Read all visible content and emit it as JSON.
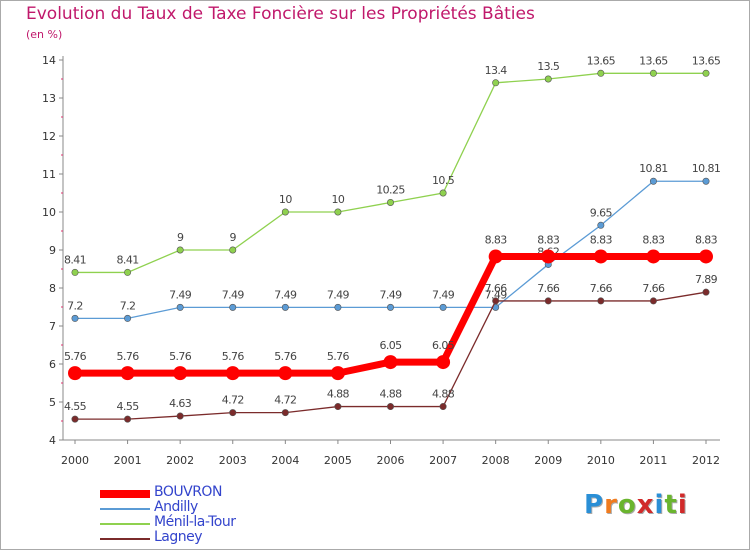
{
  "title": "Evolution du Taux de Taxe Foncière sur les Propriétés Bâties",
  "unit": "(en %)",
  "logo": {
    "text": "Proxiti",
    "colors": [
      "#2a8fd6",
      "#f07b1e",
      "#6ab52e",
      "#d12a2a",
      "#2a8fd6",
      "#6ab52e",
      "#d12a2a"
    ]
  },
  "chart_data": {
    "type": "line",
    "title": "Evolution du Taux de Taxe Foncière sur les Propriétés Bâties",
    "ylabel": "(en %)",
    "xlabel": "",
    "x": [
      "2000",
      "2001",
      "2002",
      "2003",
      "2004",
      "2005",
      "2006",
      "2007",
      "2008",
      "2009",
      "2010",
      "2011",
      "2012"
    ],
    "ylim": [
      4,
      14
    ],
    "yticks": [
      "4",
      "5",
      "6",
      "7",
      "8",
      "9",
      "10",
      "11",
      "12",
      "13",
      "14"
    ],
    "grid": false,
    "legend_position": "bottom-left",
    "series": [
      {
        "name": "BOUVRON",
        "color": "#ff0000",
        "emphasis": true,
        "values": [
          5.76,
          5.76,
          5.76,
          5.76,
          5.76,
          5.76,
          6.05,
          6.05,
          8.83,
          8.83,
          8.83,
          8.83,
          8.83
        ],
        "labels": [
          "5.76",
          "5.76",
          "5.76",
          "5.76",
          "5.76",
          "5.76",
          "6.05",
          "6.05",
          "8.83",
          "8.83",
          "8.83",
          "8.83",
          "8.83"
        ]
      },
      {
        "name": "Andilly",
        "color": "#5b9bd5",
        "values": [
          7.2,
          7.2,
          7.49,
          7.49,
          7.49,
          7.49,
          7.49,
          7.49,
          7.49,
          8.62,
          9.65,
          10.81,
          10.81
        ],
        "labels": [
          "7.2",
          "7.2",
          "7.49",
          "7.49",
          "7.49",
          "7.49",
          "7.49",
          "7.49",
          "7.49",
          "8.62",
          "9.65",
          "10.81",
          "10.81"
        ]
      },
      {
        "name": "Ménil-la-Tour",
        "color": "#8fd14f",
        "values": [
          8.41,
          8.41,
          9,
          9,
          10,
          10,
          10.25,
          10.5,
          13.4,
          13.5,
          13.65,
          13.65,
          13.65
        ],
        "labels": [
          "8.41",
          "8.41",
          "9",
          "9",
          "10",
          "10",
          "10.25",
          "10.5",
          "13.4",
          "13.5",
          "13.65",
          "13.65",
          "13.65"
        ]
      },
      {
        "name": "Lagney",
        "color": "#7b2b2b",
        "values": [
          4.55,
          4.55,
          4.63,
          4.72,
          4.72,
          4.88,
          4.88,
          4.88,
          7.66,
          7.66,
          7.66,
          7.66,
          7.89
        ],
        "labels": [
          "4.55",
          "4.55",
          "4.63",
          "4.72",
          "4.72",
          "4.88",
          "4.88",
          "4.88",
          "7.66",
          "7.66",
          "7.66",
          "7.66",
          "7.89"
        ]
      }
    ]
  }
}
